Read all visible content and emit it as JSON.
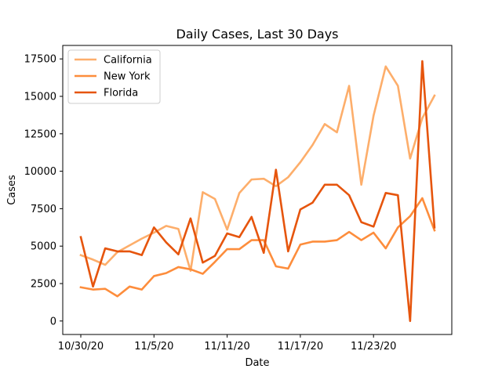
{
  "chart_data": {
    "type": "line",
    "title": "Daily Cases, Last 30 Days",
    "xlabel": "Date",
    "ylabel": "Cases",
    "x": [
      "10/30/20",
      "10/31/20",
      "11/1/20",
      "11/2/20",
      "11/3/20",
      "11/4/20",
      "11/5/20",
      "11/6/20",
      "11/7/20",
      "11/8/20",
      "11/9/20",
      "11/10/20",
      "11/11/20",
      "11/12/20",
      "11/13/20",
      "11/14/20",
      "11/15/20",
      "11/16/20",
      "11/17/20",
      "11/18/20",
      "11/19/20",
      "11/20/20",
      "11/21/20",
      "11/22/20",
      "11/23/20",
      "11/24/20",
      "11/25/20",
      "11/26/20",
      "11/27/20",
      "11/28/20"
    ],
    "x_ticks": [
      "10/30/20",
      "11/5/20",
      "11/11/20",
      "11/17/20",
      "11/23/20"
    ],
    "ylim": [
      -900,
      18400
    ],
    "y_ticks": [
      0,
      2500,
      5000,
      7500,
      10000,
      12500,
      15000,
      17500
    ],
    "y_tick_labels": [
      "0",
      "2500",
      "5000",
      "7500",
      "10000",
      "12500",
      "15000",
      "17500"
    ],
    "grid": false,
    "legend_position": "top-left",
    "series": [
      {
        "name": "California",
        "color": "#fdae6b",
        "values": [
          4400,
          4100,
          3750,
          4600,
          5050,
          5500,
          5900,
          6350,
          6150,
          3350,
          8600,
          8150,
          6100,
          8550,
          9450,
          9500,
          9000,
          9600,
          10600,
          11750,
          13150,
          12600,
          15700,
          9100,
          13700,
          17000,
          15700,
          10850,
          13550,
          15050
        ]
      },
      {
        "name": "New York",
        "color": "#fd8d3c",
        "values": [
          2250,
          2100,
          2150,
          1650,
          2300,
          2100,
          3000,
          3200,
          3600,
          3450,
          3150,
          3950,
          4800,
          4800,
          5400,
          5400,
          3650,
          3500,
          5100,
          5300,
          5300,
          5400,
          5950,
          5400,
          5900,
          4850,
          6250,
          7000,
          8200,
          6050
        ]
      },
      {
        "name": "Florida",
        "color": "#e6550d",
        "values": [
          5600,
          2300,
          4850,
          4650,
          4650,
          4400,
          6250,
          5250,
          4450,
          6850,
          3900,
          4350,
          5850,
          5600,
          6950,
          4550,
          10100,
          4650,
          7450,
          7900,
          9100,
          9100,
          8400,
          6600,
          6300,
          8550,
          8400,
          0,
          17350,
          6250
        ]
      }
    ]
  }
}
